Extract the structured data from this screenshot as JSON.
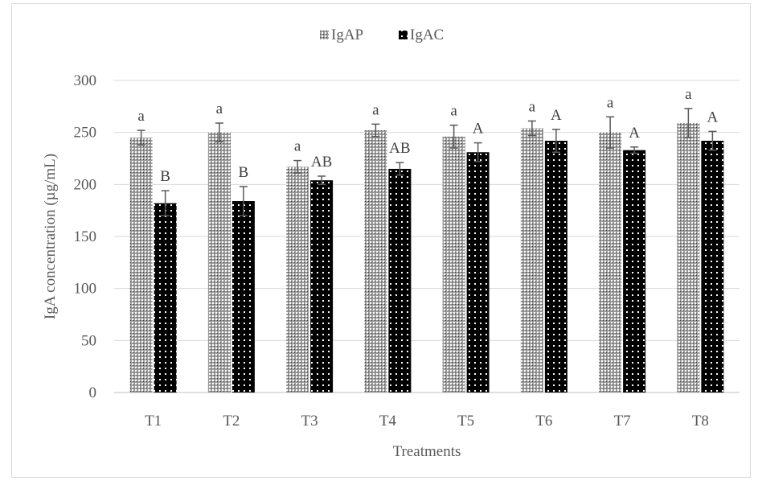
{
  "chart_data": {
    "type": "bar",
    "title": "",
    "xlabel": "Treatments",
    "ylabel": "IgA concentration (µg/mL)",
    "ylim": [
      0,
      300
    ],
    "yticks": [
      "0",
      "50",
      "100",
      "150",
      "200",
      "250",
      "300"
    ],
    "grid": true,
    "legend_position": "top",
    "categories": [
      "T1",
      "T2",
      "T3",
      "T4",
      "T5",
      "T6",
      "T7",
      "T8"
    ],
    "series": [
      {
        "name": "IgAP",
        "color": "#8c8c8c",
        "pattern": "fine-dots",
        "values": [
          245,
          250,
          217,
          252,
          246,
          254,
          250,
          259
        ],
        "errors": [
          7,
          9,
          6,
          6,
          11,
          7,
          15,
          14
        ],
        "letters": [
          "a",
          "a",
          "a",
          "a",
          "a",
          "a",
          "a",
          "a"
        ]
      },
      {
        "name": "IgAC",
        "color": "#000000",
        "pattern": "sparse-dots",
        "values": [
          182,
          184,
          204,
          215,
          231,
          242,
          233,
          242
        ],
        "errors": [
          12,
          14,
          4,
          6,
          9,
          11,
          3,
          9
        ],
        "letters": [
          "B",
          "B",
          "AB",
          "AB",
          "A",
          "A",
          "A",
          "A"
        ]
      }
    ]
  }
}
